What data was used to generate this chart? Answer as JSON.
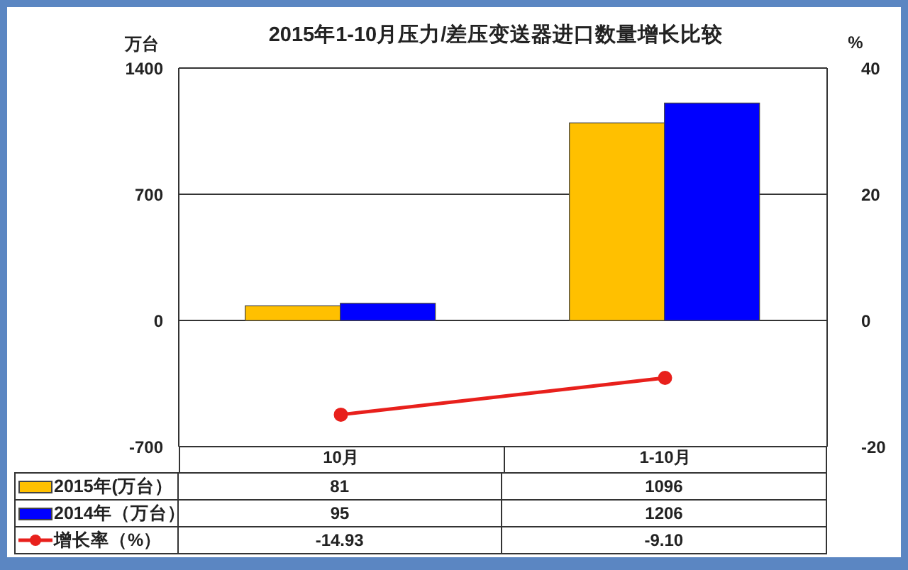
{
  "chart_data": {
    "type": "bar",
    "title": "2015年1-10月压力/差压变送器进口数量增长比较",
    "ylabel": "万台",
    "y2label": "%",
    "categories": [
      "10月",
      "1-10月"
    ],
    "series": [
      {
        "name": "2015年(万台）",
        "color": "#ffc000",
        "values": [
          81,
          1096
        ]
      },
      {
        "name": "2014年（万台）",
        "color": "#0000ff",
        "values": [
          95,
          1206
        ]
      },
      {
        "name": "增长率（%）",
        "type": "line",
        "axis": "y2",
        "color": "#e8201c",
        "values": [
          -14.93,
          -9.1
        ],
        "value_labels": [
          "-14.93",
          "-9.10"
        ]
      }
    ],
    "ylim": [
      -700,
      1400
    ],
    "yticks": [
      -700,
      0,
      700,
      1400
    ],
    "y2lim": [
      -20,
      40
    ],
    "y2ticks": [
      -20,
      0,
      20,
      40
    ],
    "grid": "y",
    "legend": "bottom",
    "marker": "circle",
    "data_labels": true
  }
}
